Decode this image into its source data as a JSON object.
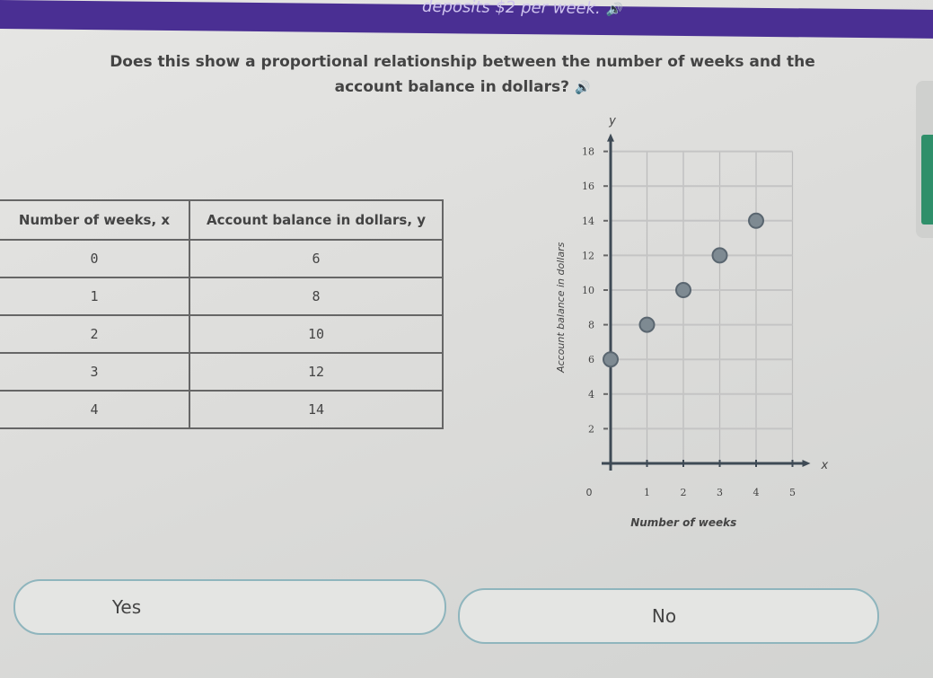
{
  "banner": {
    "text": "deposits $2 per week."
  },
  "question": {
    "line1": "Does this show a proportional relationship between the number of weeks and the",
    "line2": "account balance in dollars?",
    "audio_icon": "speaker-icon"
  },
  "table": {
    "headers": [
      "Number of weeks, x",
      "Account balance in dollars, y"
    ],
    "rows": [
      [
        "0",
        "6"
      ],
      [
        "1",
        "8"
      ],
      [
        "2",
        "10"
      ],
      [
        "3",
        "12"
      ],
      [
        "4",
        "14"
      ]
    ]
  },
  "chart_data": {
    "type": "scatter",
    "xlabel": "Number of weeks",
    "ylabel": "Account balance in dollars",
    "x_axis_name": "x",
    "y_axis_name": "y",
    "xlim": [
      0,
      5
    ],
    "ylim": [
      0,
      18
    ],
    "x_ticks": [
      "1",
      "2",
      "3",
      "4",
      "5"
    ],
    "y_ticks": [
      "2",
      "4",
      "6",
      "8",
      "10",
      "12",
      "14",
      "16",
      "18"
    ],
    "origin_label": "0",
    "grid": true,
    "points": [
      [
        0,
        6
      ],
      [
        1,
        8
      ],
      [
        2,
        10
      ],
      [
        3,
        12
      ],
      [
        4,
        14
      ]
    ]
  },
  "choices": [
    {
      "label": "Yes"
    },
    {
      "label": "No"
    }
  ],
  "colors": {
    "banner": "#4a2f93",
    "point": "#7e8a92",
    "answer_border": "#8fb5bd"
  }
}
